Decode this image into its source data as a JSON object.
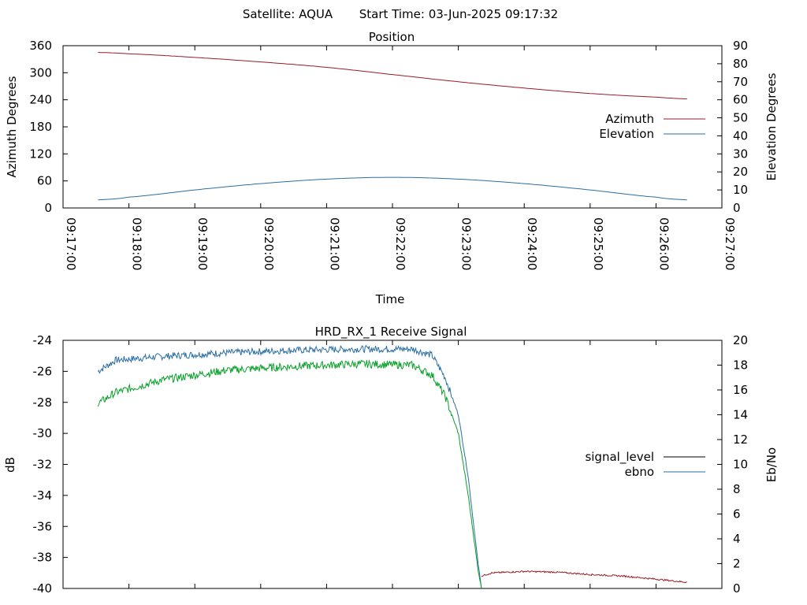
{
  "header": {
    "satellite": "Satellite: AQUA",
    "start_time": "Start Time: 03-Jun-2025 09:17:32"
  },
  "colors": {
    "red": "#9b1b24",
    "blue": "#2a6ea4",
    "green": "#0a9e2a",
    "black": "#000000"
  },
  "chart_data": [
    {
      "type": "line",
      "title": "Position",
      "xlabel": "Time",
      "ylabel": "Azimuth Degrees",
      "y2label": "Elevation Degrees",
      "x_ticks": [
        "09:17:00",
        "09:18:00",
        "09:19:00",
        "09:20:00",
        "09:21:00",
        "09:22:00",
        "09:23:00",
        "09:24:00",
        "09:25:00",
        "09:26:00",
        "09:27:00"
      ],
      "xlim_minutes": [
        0,
        10
      ],
      "ylim": [
        0,
        360
      ],
      "y_ticks": [
        "0",
        "60",
        "120",
        "180",
        "240",
        "300",
        "360"
      ],
      "y2lim": [
        0,
        90
      ],
      "y2_ticks": [
        "0",
        "10",
        "20",
        "30",
        "40",
        "50",
        "60",
        "70",
        "80",
        "90"
      ],
      "legend_position": "right",
      "series": [
        {
          "name": "Azimuth",
          "axis": "y",
          "color": "red",
          "x": [
            0.53,
            1,
            2,
            3,
            4,
            5,
            6,
            7,
            8,
            9,
            9.47
          ],
          "values": [
            345,
            342,
            334,
            324,
            312,
            296,
            280,
            266,
            254,
            246,
            242
          ]
        },
        {
          "name": "Elevation",
          "axis": "y2",
          "color": "blue",
          "x": [
            0.53,
            1,
            2,
            3,
            4,
            5,
            6,
            7,
            8,
            9,
            9.47
          ],
          "values": [
            4.5,
            6,
            10,
            13.5,
            16,
            17,
            16,
            13.5,
            10,
            6,
            4.5
          ]
        }
      ]
    },
    {
      "type": "line",
      "title": "HRD_RX_1 Receive Signal",
      "ylabel": "dB",
      "y2label": "Eb/No",
      "ylim": [
        -40,
        -24
      ],
      "y_ticks": [
        "-40",
        "-38",
        "-36",
        "-34",
        "-32",
        "-30",
        "-28",
        "-26",
        "-24"
      ],
      "y2lim": [
        0,
        20
      ],
      "y2_ticks": [
        "0",
        "2",
        "4",
        "6",
        "8",
        "10",
        "12",
        "14",
        "16",
        "18",
        "20"
      ],
      "legend_position": "right",
      "legend": [
        {
          "name": "signal_level",
          "color": "black"
        },
        {
          "name": "ebno",
          "color": "blue"
        }
      ],
      "series": [
        {
          "name": "ebno",
          "axis": "y2",
          "color": "blue",
          "x": [
            0.53,
            0.8,
            1.5,
            2.5,
            3.5,
            4.5,
            5.3,
            5.6,
            5.8,
            6.0,
            6.15,
            6.3,
            6.35
          ],
          "values": [
            17.5,
            18.4,
            18.7,
            19.0,
            19.2,
            19.3,
            19.3,
            18.8,
            17.0,
            14.0,
            9.0,
            2.0,
            0.0
          ]
        },
        {
          "name": "",
          "axis": "y2",
          "color": "green",
          "x": [
            0.53,
            0.8,
            1.5,
            2.5,
            3.5,
            4.5,
            5.3,
            5.6,
            5.8,
            6.0,
            6.15,
            6.3,
            6.35
          ],
          "values": [
            14.9,
            15.8,
            16.8,
            17.6,
            17.9,
            18.1,
            18.0,
            17.2,
            15.5,
            12.5,
            7.5,
            1.5,
            0.0
          ]
        },
        {
          "name": "",
          "axis": "y",
          "color": "red",
          "x": [
            6.35,
            6.5,
            7,
            7.5,
            8,
            8.5,
            9,
            9.47
          ],
          "values": [
            -39.2,
            -39.0,
            -38.9,
            -38.95,
            -39.1,
            -39.2,
            -39.4,
            -39.6
          ]
        }
      ]
    }
  ]
}
